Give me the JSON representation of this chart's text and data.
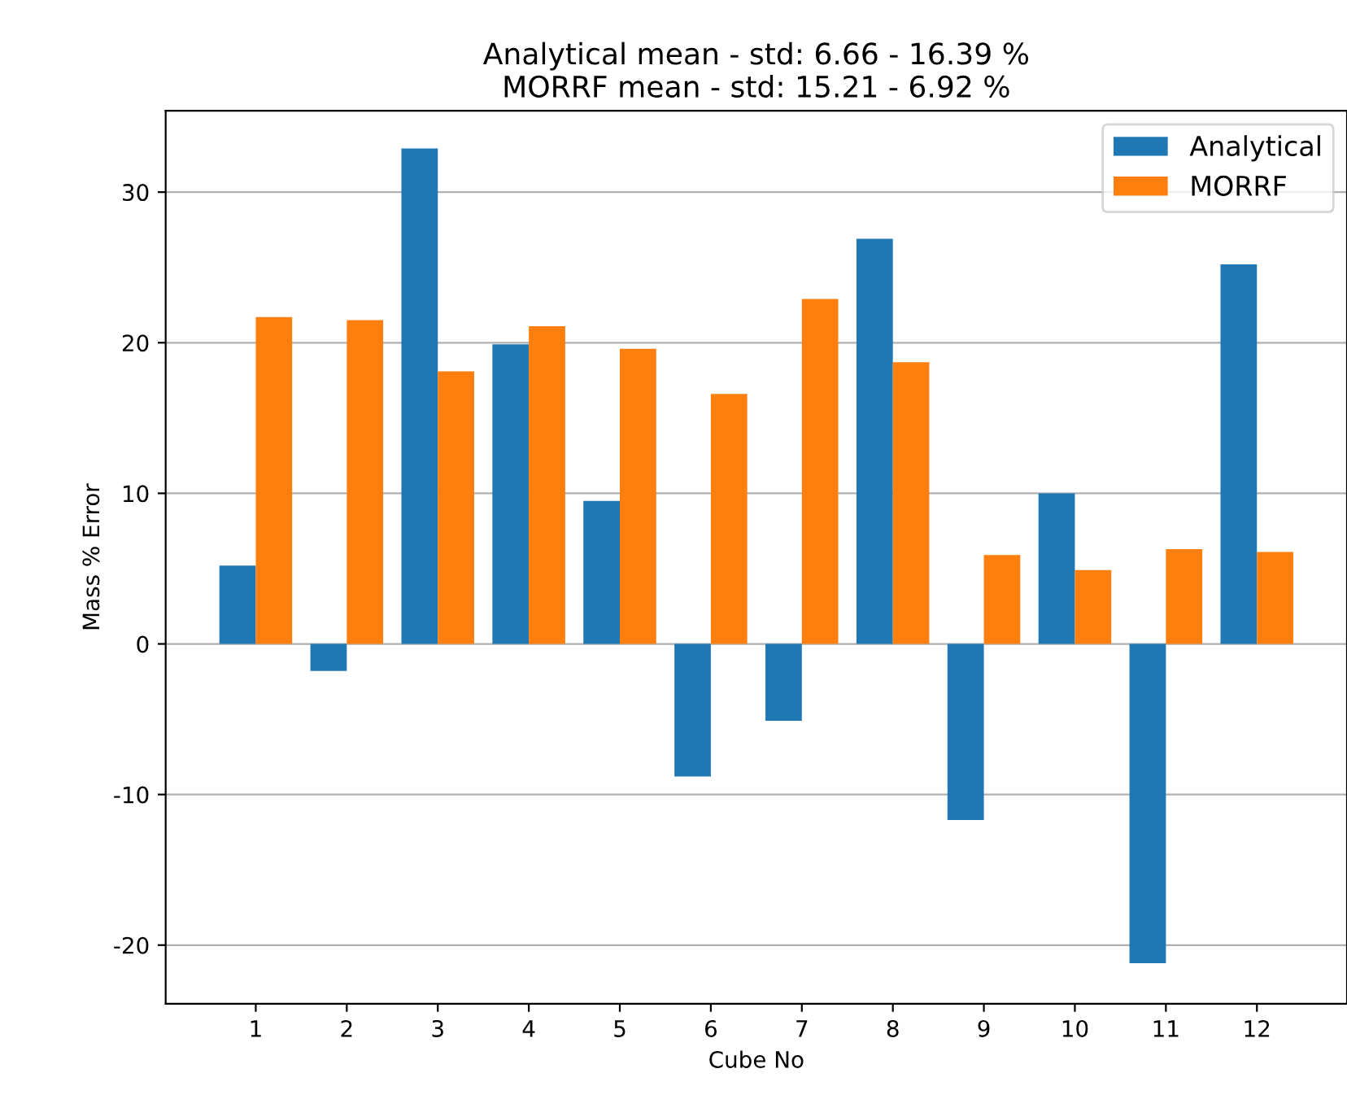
{
  "chart_data": {
    "type": "bar",
    "title": "Analytical mean - std: 6.66 - 16.39 %\nMORRF mean - std: 15.21 - 6.92 %",
    "xlabel": "Cube No",
    "ylabel": "Mass % Error",
    "categories": [
      "1",
      "2",
      "3",
      "4",
      "5",
      "6",
      "7",
      "8",
      "9",
      "10",
      "11",
      "12"
    ],
    "series": [
      {
        "name": "Analytical",
        "color": "#1f77b4",
        "values": [
          5.2,
          -1.8,
          32.9,
          19.9,
          9.5,
          -8.8,
          -5.1,
          26.9,
          -11.7,
          10.0,
          -21.2,
          25.2
        ]
      },
      {
        "name": "MORRF",
        "color": "#ff7f0e",
        "values": [
          21.7,
          21.5,
          18.1,
          21.1,
          19.6,
          16.6,
          22.9,
          18.7,
          5.9,
          4.9,
          6.3,
          6.1
        ]
      }
    ],
    "ylim": [
      -23.9,
      35.4
    ],
    "yticks": [
      -20,
      -10,
      0,
      10,
      20,
      30
    ],
    "grid": "y",
    "legend": "top right"
  }
}
